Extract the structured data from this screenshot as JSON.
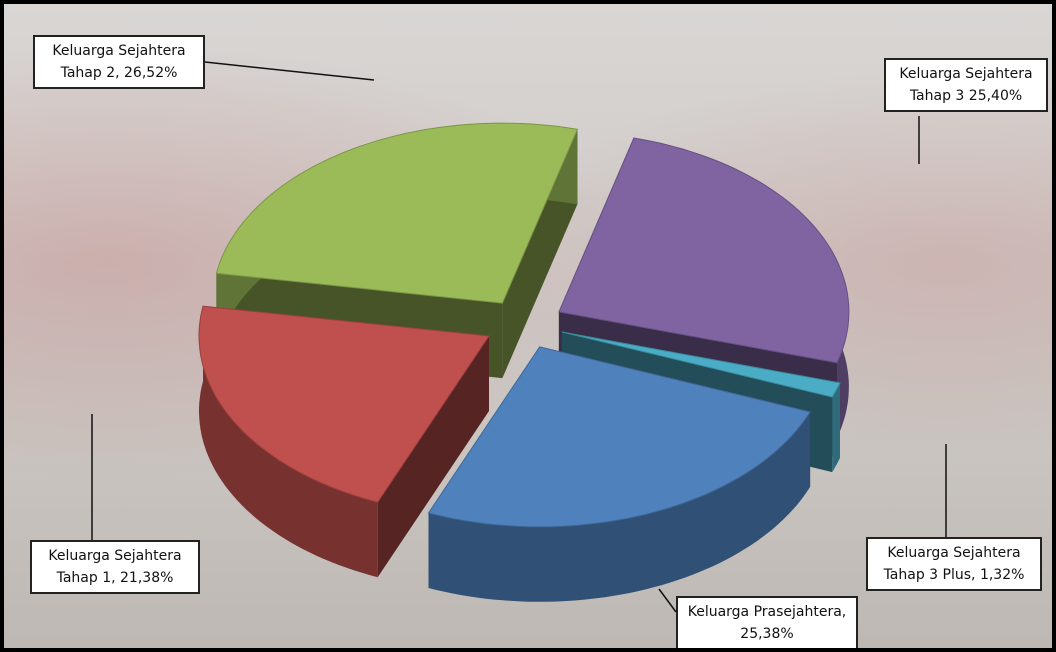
{
  "chart_data": {
    "type": "pie3d",
    "categories": [
      "Keluarga Sejahtera Tahap 3",
      "Keluarga Sejahtera Tahap 3 Plus,",
      "Keluarga Prasejahtera,",
      "Keluarga Sejahtera Tahap 1,",
      "Keluarga Sejahtera Tahap 2,"
    ],
    "values": [
      25.4,
      1.32,
      25.38,
      21.38,
      26.52
    ],
    "value_labels": [
      "25,40%",
      "1,32%",
      "25,38%",
      "21,38%",
      "26,52%"
    ],
    "colors": [
      "#8064a2",
      "#4bacc6",
      "#4f81bd",
      "#c0504d",
      "#9bbb59"
    ]
  }
}
